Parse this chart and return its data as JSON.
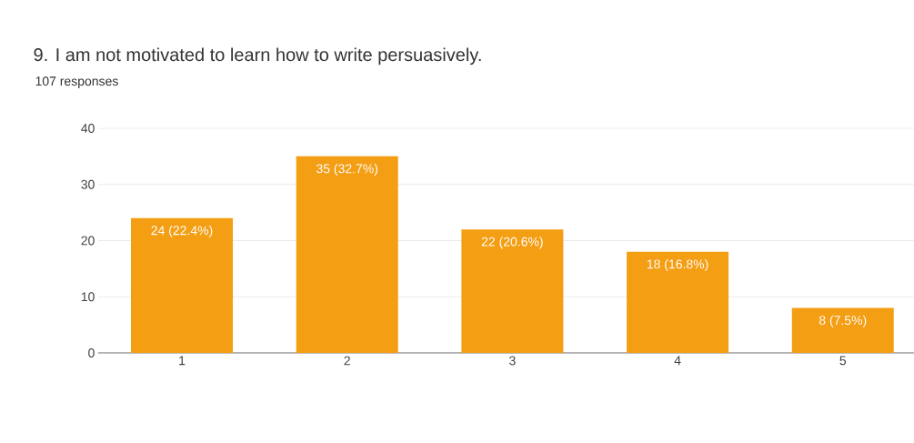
{
  "chart_data": {
    "type": "bar",
    "title": "9. I am not motivated to learn how to write persuasively.",
    "subtitle": "107 responses",
    "categories": [
      "1",
      "2",
      "3",
      "4",
      "5"
    ],
    "values": [
      24,
      35,
      22,
      18,
      8
    ],
    "value_labels": [
      "24 (22.4%)",
      "35 (32.7%)",
      "22 (20.6%)",
      "18 (16.8%)",
      "8 (7.5%)"
    ],
    "color": "#f49e14",
    "ylim": [
      0,
      40
    ],
    "yticks": [
      0,
      10,
      20,
      30,
      40
    ],
    "grid": "y"
  }
}
